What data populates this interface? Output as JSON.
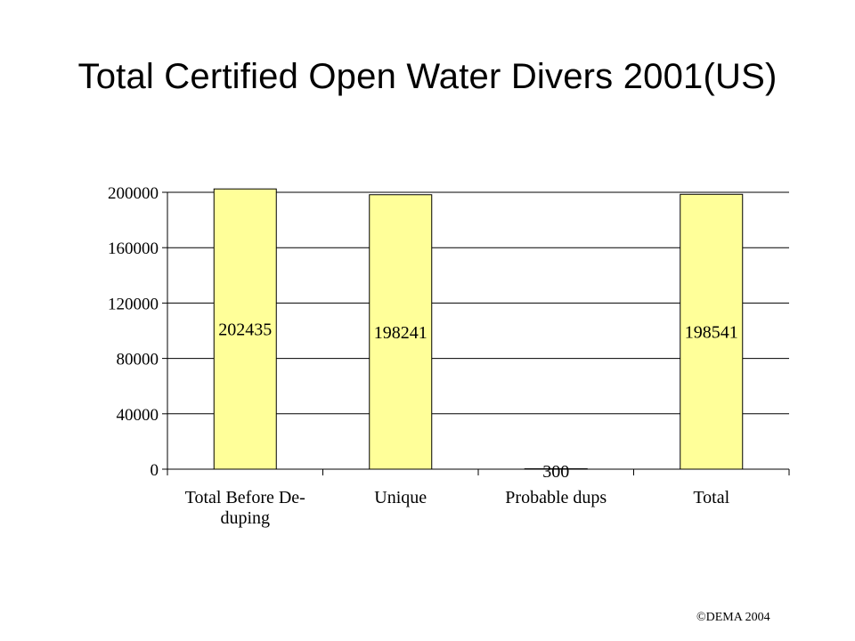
{
  "slide": {
    "title": "Total Certified Open Water Divers 2001(US)",
    "footer": "©DEMA 2004"
  },
  "chart_data": {
    "type": "bar",
    "categories": [
      [
        "Total Before De-",
        "duping"
      ],
      [
        "Unique"
      ],
      [
        "Probable dups"
      ],
      [
        "Total"
      ]
    ],
    "values": [
      202435,
      198241,
      300,
      198541
    ],
    "data_labels": [
      "202435",
      "198241",
      "300",
      "198541"
    ],
    "y_ticks": [
      0,
      40000,
      80000,
      120000,
      160000,
      200000
    ],
    "ylim": [
      0,
      200000
    ],
    "grid": true,
    "legend": "none",
    "colors": {
      "bar_fill": "#FFFF99",
      "bar_stroke": "#000000",
      "grid": "#000000"
    }
  }
}
